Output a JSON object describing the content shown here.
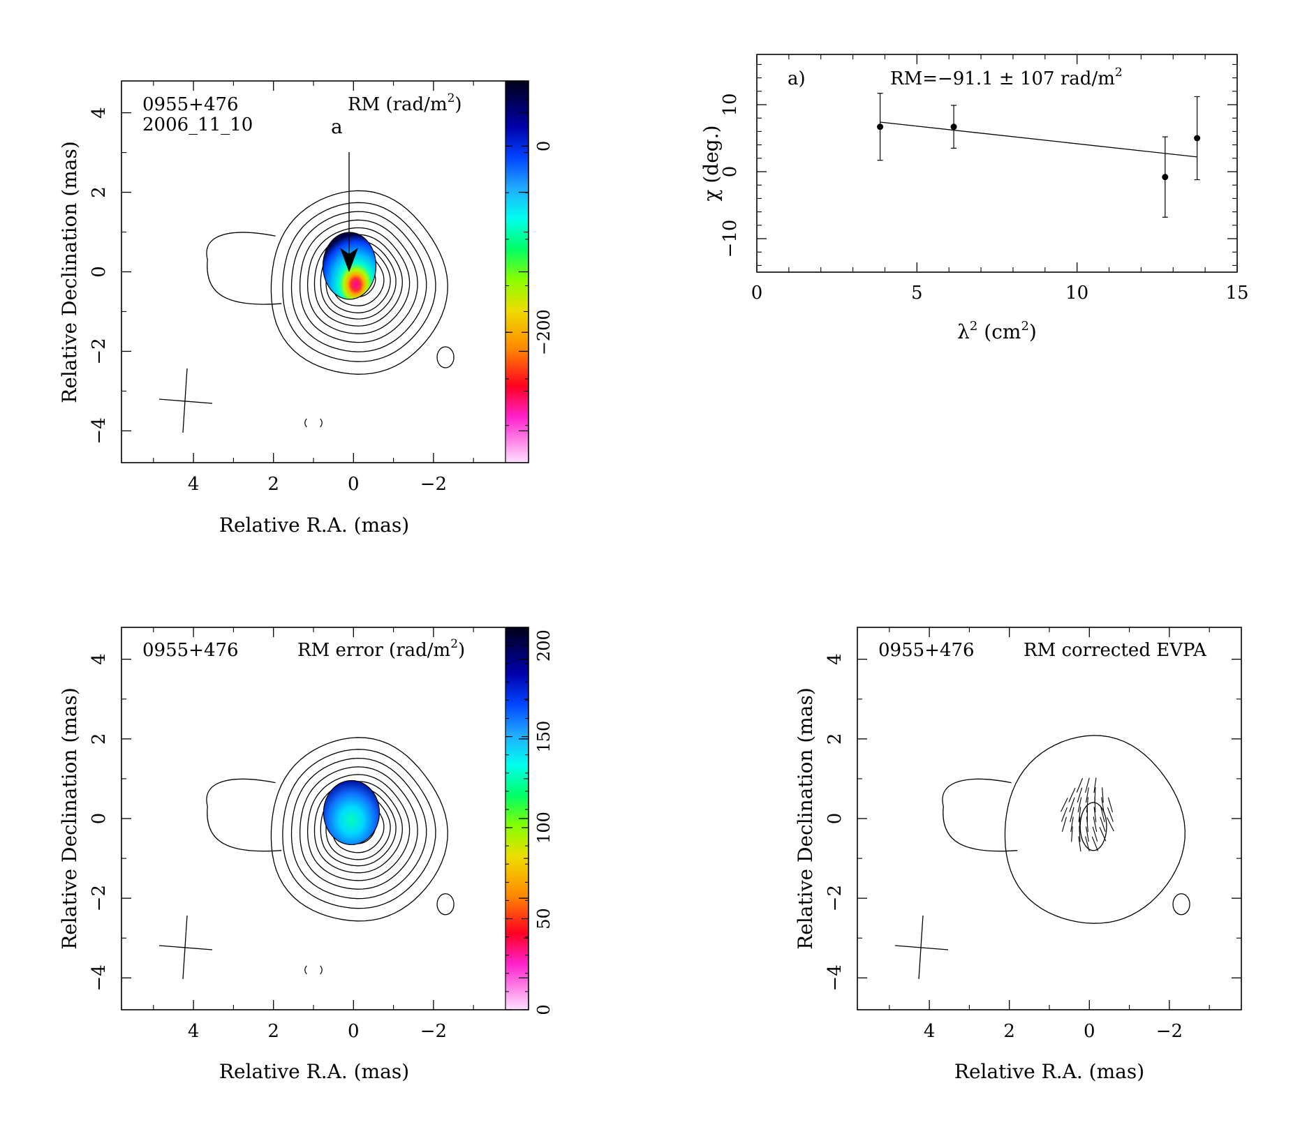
{
  "figure": {
    "panel_rm": {
      "source": "0955+476",
      "epoch": "2006_11_10",
      "title_main": "RM (rad/m",
      "title_sup": "2",
      "title_close": ")",
      "marker": "a",
      "xlabel": "Relative R.A. (mas)",
      "ylabel": "Relative Declination (mas)",
      "xticks": [
        "4",
        "2",
        "0",
        "−2"
      ],
      "yticks": [
        "4",
        "2",
        "0",
        "−2",
        "−4"
      ],
      "colorbar_ticks": [
        "0",
        "−200"
      ]
    },
    "panel_fit": {
      "label": "a)",
      "annotation": "RM=−91.1 ± 107 rad/m",
      "annotation_sup": "2",
      "xlabel_main": "λ",
      "xlabel_sup": "2",
      "xlabel_mid": " (cm",
      "xlabel_sup2": "2",
      "xlabel_close": ")",
      "ylabel": "χ (deg.)",
      "xticks": [
        "0",
        "5",
        "10",
        "15"
      ],
      "yticks": [
        "10",
        "0",
        "−10"
      ]
    },
    "panel_rmerr": {
      "source": "0955+476",
      "title_main": "RM error (rad/m",
      "title_sup": "2",
      "title_close": ")",
      "xlabel": "Relative R.A. (mas)",
      "ylabel": "Relative Declination (mas)",
      "xticks": [
        "4",
        "2",
        "0",
        "−2"
      ],
      "yticks": [
        "4",
        "2",
        "0",
        "−2",
        "−4"
      ],
      "colorbar_ticks": [
        "200",
        "150",
        "100",
        "50",
        "0"
      ]
    },
    "panel_evpa": {
      "source": "0955+476",
      "title": "RM corrected EVPA",
      "xlabel": "Relative R.A. (mas)",
      "ylabel": "Relative Declination (mas)",
      "xticks": [
        "4",
        "2",
        "0",
        "−2"
      ],
      "yticks": [
        "4",
        "2",
        "0",
        "−2",
        "−4"
      ]
    }
  },
  "chart_data": [
    {
      "type": "heatmap",
      "title": "RM (rad/m2)",
      "xlabel": "Relative R.A. (mas)",
      "ylabel": "Relative Declination (mas)",
      "xlim": [
        5.8,
        -3.8
      ],
      "ylim": [
        -4.8,
        4.8
      ],
      "colorbar_range": [
        -340,
        70
      ],
      "source": "0955+476",
      "epoch": "2006_11_10"
    },
    {
      "type": "scatter",
      "title": "RM=−91.1 ± 107 rad/m2",
      "xlabel": "λ2 (cm2)",
      "ylabel": "χ (deg.)",
      "xlim": [
        0,
        15
      ],
      "ylim": [
        -15,
        17.5
      ],
      "points": [
        {
          "x": 3.85,
          "y": 6.7,
          "err": 5.0
        },
        {
          "x": 6.15,
          "y": 6.7,
          "err": 3.2
        },
        {
          "x": 12.75,
          "y": -0.8,
          "err": 6.0
        },
        {
          "x": 13.75,
          "y": 5.0,
          "err": 6.2
        }
      ],
      "fit": {
        "x": [
          3.85,
          13.75
        ],
        "y": [
          7.4,
          2.2
        ]
      }
    },
    {
      "type": "heatmap",
      "title": "RM error (rad/m2)",
      "xlabel": "Relative R.A. (mas)",
      "ylabel": "Relative Declination (mas)",
      "xlim": [
        5.8,
        -3.8
      ],
      "ylim": [
        -4.8,
        4.8
      ],
      "colorbar_range": [
        0,
        210
      ],
      "source": "0955+476"
    },
    {
      "type": "scatter",
      "title": "RM corrected EVPA",
      "xlabel": "Relative R.A. (mas)",
      "ylabel": "Relative Declination (mas)",
      "xlim": [
        5.8,
        -3.8
      ],
      "ylim": [
        -4.8,
        4.8
      ],
      "source": "0955+476"
    }
  ]
}
